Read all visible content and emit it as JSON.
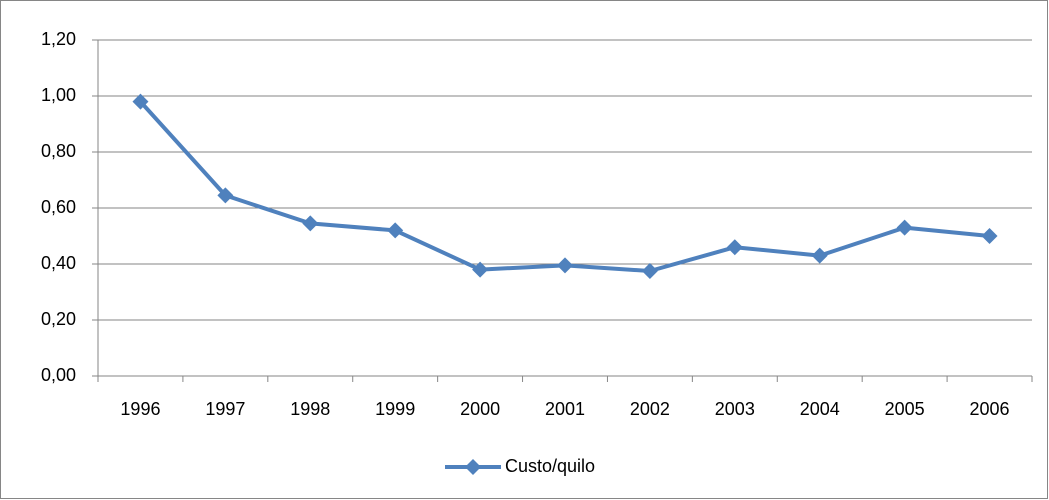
{
  "chart_data": {
    "type": "line",
    "categories": [
      "1996",
      "1997",
      "1998",
      "1999",
      "2000",
      "2001",
      "2002",
      "2003",
      "2004",
      "2005",
      "2006"
    ],
    "series": [
      {
        "name": "Custo/quilo",
        "color": "#4f81bd",
        "values": [
          0.98,
          0.645,
          0.545,
          0.52,
          0.38,
          0.395,
          0.375,
          0.46,
          0.43,
          0.53,
          0.5
        ]
      }
    ],
    "ylim": [
      0,
      1.2
    ],
    "yticks": [
      {
        "value": 0,
        "label": "0,00"
      },
      {
        "value": 0.2,
        "label": "0,20"
      },
      {
        "value": 0.4,
        "label": "0,40"
      },
      {
        "value": 0.6,
        "label": "0,60"
      },
      {
        "value": 0.8,
        "label": "0,80"
      },
      {
        "value": 1,
        "label": "1,00"
      },
      {
        "value": 1.2,
        "label": "1,20"
      }
    ],
    "grid": true,
    "legend": "bottom",
    "marker": "diamond"
  }
}
